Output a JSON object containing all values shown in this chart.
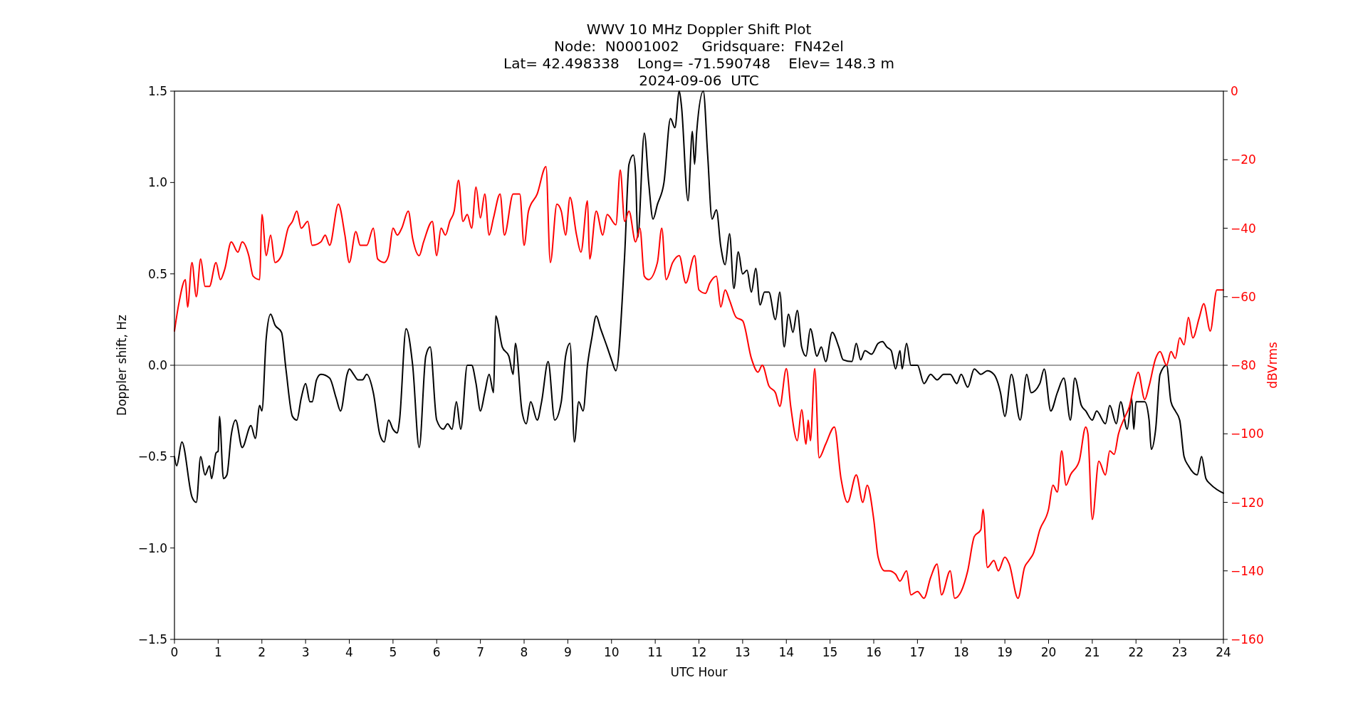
{
  "chart_data": {
    "type": "line",
    "title": "WWV 10 MHz Doppler Shift Plot",
    "subtitle": "Node:  N0001002     Gridsquare:  FN42el\nLat= 42.498338    Long= -71.590748    Elev= 148.3 m\n2024-09-06  UTC",
    "xlabel": "UTC Hour",
    "ylabel": "Doppler shift, Hz",
    "y2label": "dBVrms",
    "xlim": [
      0,
      24
    ],
    "xticks": [
      0,
      1,
      2,
      3,
      4,
      5,
      6,
      7,
      8,
      9,
      10,
      11,
      12,
      13,
      14,
      15,
      16,
      17,
      18,
      19,
      20,
      21,
      22,
      23,
      24
    ],
    "ylim": [
      -1.5,
      1.5
    ],
    "yticks": [
      {
        "value": -1.5,
        "label": "−1.5"
      },
      {
        "value": -1,
        "label": "−1.0"
      },
      {
        "value": -0.5,
        "label": "−0.5"
      },
      {
        "value": 0,
        "label": "0.0"
      },
      0.5,
      {
        "value": 1,
        "label": "1.0"
      },
      1.5
    ],
    "y2lim": [
      -160,
      0
    ],
    "y2ticks": [
      {
        "value": -160,
        "label": "−160"
      },
      {
        "value": -140,
        "label": "−140"
      },
      {
        "value": -120,
        "label": "−120"
      },
      {
        "value": -100,
        "label": "−100"
      },
      {
        "value": -80,
        "label": "−80"
      },
      {
        "value": -60,
        "label": "−60"
      },
      {
        "value": -40,
        "label": "−40"
      },
      {
        "value": -20,
        "label": "−20"
      },
      0
    ],
    "grid": false,
    "line_style": "solid",
    "marker": "none",
    "ref_lines": [
      {
        "axis": "y",
        "value": 0,
        "label": null,
        "color": "#808080"
      }
    ],
    "series": [
      {
        "color": "#000000",
        "axis": "y",
        "x": [
          0,
          0.05,
          0.17,
          0.4,
          0.5,
          0.6,
          0.7,
          0.8,
          0.85,
          0.95,
          1.0,
          1.03,
          1.12,
          1.2,
          1.3,
          1.4,
          1.55,
          1.75,
          1.85,
          1.95,
          2.0,
          2.1,
          2.2,
          2.3,
          2.45,
          2.55,
          2.7,
          2.8,
          2.9,
          3.0,
          3.1,
          3.15,
          3.25,
          3.35,
          3.55,
          3.7,
          3.8,
          3.95,
          4.0,
          4.1,
          4.2,
          4.3,
          4.4,
          4.55,
          4.7,
          4.8,
          4.9,
          5.0,
          5.1,
          5.15,
          5.3,
          5.45,
          5.6,
          5.75,
          5.85,
          6.0,
          6.15,
          6.25,
          6.35,
          6.45,
          6.55,
          6.7,
          6.8,
          6.9,
          7.0,
          7.1,
          7.2,
          7.3,
          7.35,
          7.5,
          7.65,
          7.75,
          7.8,
          7.95,
          8.05,
          8.15,
          8.3,
          8.4,
          8.55,
          8.7,
          8.85,
          8.95,
          9.05,
          9.15,
          9.25,
          9.35,
          9.45,
          9.55,
          9.65,
          9.75,
          9.9,
          10.0,
          10.1,
          10.3,
          10.4,
          10.5,
          10.55,
          10.6,
          10.75,
          10.85,
          10.95,
          11.05,
          11.2,
          11.35,
          11.45,
          11.55,
          11.6,
          11.75,
          11.85,
          11.9,
          11.95,
          12.1,
          12.2,
          12.3,
          12.4,
          12.5,
          12.6,
          12.7,
          12.8,
          12.9,
          13.0,
          13.1,
          13.2,
          13.3,
          13.4,
          13.5,
          13.6,
          13.75,
          13.85,
          13.95,
          14.05,
          14.15,
          14.25,
          14.35,
          14.45,
          14.55,
          14.7,
          14.8,
          14.9,
          15.05,
          15.2,
          15.3,
          15.5,
          15.6,
          15.7,
          15.8,
          15.95,
          16.1,
          16.2,
          16.3,
          16.4,
          16.5,
          16.6,
          16.65,
          16.75,
          16.85,
          17.0,
          17.15,
          17.3,
          17.45,
          17.6,
          17.75,
          17.9,
          18.0,
          18.15,
          18.3,
          18.45,
          18.6,
          18.75,
          18.9,
          19.0,
          19.15,
          19.35,
          19.5,
          19.6,
          19.8,
          19.9,
          20.05,
          20.2,
          20.35,
          20.5,
          20.6,
          20.75,
          20.85,
          21.0,
          21.1,
          21.3,
          21.4,
          21.55,
          21.65,
          21.8,
          21.9,
          21.95,
          22.0,
          22.2,
          22.3,
          22.35,
          22.45,
          22.55,
          22.7,
          22.8,
          22.9,
          23.0,
          23.1,
          23.2,
          23.4,
          23.5,
          23.6,
          23.7,
          23.85,
          24.0
        ],
        "values": [
          -0.5,
          -0.55,
          -0.42,
          -0.72,
          -0.75,
          -0.5,
          -0.6,
          -0.55,
          -0.62,
          -0.48,
          -0.47,
          -0.28,
          -0.62,
          -0.6,
          -0.38,
          -0.3,
          -0.45,
          -0.33,
          -0.4,
          -0.22,
          -0.25,
          0.15,
          0.28,
          0.22,
          0.18,
          -0.02,
          -0.28,
          -0.3,
          -0.18,
          -0.1,
          -0.2,
          -0.2,
          -0.08,
          -0.05,
          -0.07,
          -0.18,
          -0.25,
          -0.05,
          -0.02,
          -0.05,
          -0.08,
          -0.08,
          -0.05,
          -0.15,
          -0.38,
          -0.42,
          -0.3,
          -0.35,
          -0.37,
          -0.3,
          0.2,
          0.0,
          -0.45,
          0.05,
          0.1,
          -0.3,
          -0.35,
          -0.32,
          -0.35,
          -0.2,
          -0.35,
          0.0,
          0.0,
          -0.1,
          -0.25,
          -0.15,
          -0.05,
          -0.15,
          0.27,
          0.1,
          0.05,
          -0.05,
          0.12,
          -0.25,
          -0.32,
          -0.2,
          -0.3,
          -0.2,
          0.02,
          -0.3,
          -0.2,
          0.05,
          0.12,
          -0.42,
          -0.2,
          -0.25,
          0.0,
          0.15,
          0.27,
          0.2,
          0.1,
          0.03,
          -0.03,
          0.6,
          1.1,
          1.15,
          1.05,
          0.7,
          1.27,
          1.0,
          0.8,
          0.88,
          1.0,
          1.35,
          1.3,
          1.5,
          1.42,
          0.9,
          1.28,
          1.1,
          1.28,
          1.5,
          1.15,
          0.8,
          0.85,
          0.65,
          0.55,
          0.72,
          0.42,
          0.62,
          0.5,
          0.52,
          0.4,
          0.53,
          0.33,
          0.4,
          0.4,
          0.25,
          0.4,
          0.1,
          0.28,
          0.18,
          0.3,
          0.1,
          0.05,
          0.2,
          0.05,
          0.1,
          0.02,
          0.18,
          0.1,
          0.03,
          0.02,
          0.12,
          0.03,
          0.08,
          0.06,
          0.12,
          0.13,
          0.1,
          0.08,
          -0.02,
          0.08,
          -0.02,
          0.12,
          0.0,
          0.0,
          -0.1,
          -0.05,
          -0.08,
          -0.05,
          -0.05,
          -0.1,
          -0.05,
          -0.12,
          -0.02,
          -0.05,
          -0.03,
          -0.05,
          -0.15,
          -0.28,
          -0.05,
          -0.3,
          -0.05,
          -0.15,
          -0.1,
          -0.02,
          -0.25,
          -0.15,
          -0.07,
          -0.3,
          -0.07,
          -0.22,
          -0.25,
          -0.3,
          -0.25,
          -0.32,
          -0.22,
          -0.32,
          -0.2,
          -0.35,
          -0.18,
          -0.35,
          -0.2,
          -0.2,
          -0.3,
          -0.46,
          -0.35,
          -0.05,
          0.0,
          -0.2,
          -0.25,
          -0.3,
          -0.5,
          -0.55,
          -0.6,
          -0.5,
          -0.62,
          -0.65,
          -0.68,
          -0.7
        ]
      },
      {
        "color": "#ff0000",
        "axis": "y2",
        "x": [
          0,
          0.1,
          0.25,
          0.3,
          0.4,
          0.5,
          0.6,
          0.7,
          0.8,
          0.95,
          1.05,
          1.15,
          1.3,
          1.45,
          1.55,
          1.7,
          1.8,
          1.95,
          2.0,
          2.1,
          2.2,
          2.3,
          2.45,
          2.6,
          2.7,
          2.8,
          2.9,
          3.05,
          3.15,
          3.35,
          3.45,
          3.55,
          3.75,
          3.9,
          4.0,
          4.15,
          4.25,
          4.4,
          4.55,
          4.65,
          4.8,
          4.9,
          5.0,
          5.1,
          5.2,
          5.35,
          5.45,
          5.6,
          5.7,
          5.9,
          6.0,
          6.1,
          6.2,
          6.3,
          6.4,
          6.5,
          6.6,
          6.7,
          6.8,
          6.9,
          7.0,
          7.1,
          7.2,
          7.3,
          7.45,
          7.55,
          7.75,
          7.9,
          8.0,
          8.1,
          8.3,
          8.5,
          8.6,
          8.75,
          8.85,
          8.95,
          9.05,
          9.2,
          9.3,
          9.45,
          9.5,
          9.65,
          9.8,
          9.9,
          10.1,
          10.2,
          10.3,
          10.4,
          10.55,
          10.65,
          10.75,
          10.85,
          11.05,
          11.15,
          11.25,
          11.4,
          11.55,
          11.7,
          11.9,
          12.0,
          12.15,
          12.25,
          12.4,
          12.5,
          12.6,
          12.7,
          12.85,
          13.0,
          13.2,
          13.35,
          13.45,
          13.6,
          13.75,
          13.85,
          14.0,
          14.1,
          14.25,
          14.35,
          14.45,
          14.5,
          14.55,
          14.65,
          14.75,
          14.9,
          15.1,
          15.25,
          15.4,
          15.6,
          15.75,
          15.85,
          16.0,
          16.1,
          16.25,
          16.35,
          16.5,
          16.6,
          16.75,
          16.85,
          17.0,
          17.15,
          17.3,
          17.45,
          17.55,
          17.75,
          17.85,
          18.0,
          18.15,
          18.3,
          18.45,
          18.5,
          18.6,
          18.75,
          18.85,
          19.0,
          19.1,
          19.3,
          19.45,
          19.55,
          19.65,
          19.8,
          20.0,
          20.1,
          20.2,
          20.3,
          20.4,
          20.5,
          20.7,
          20.85,
          20.9,
          21.0,
          21.15,
          21.3,
          21.4,
          21.5,
          21.6,
          21.75,
          21.85,
          21.95,
          22.05,
          22.2,
          22.3,
          22.45,
          22.55,
          22.7,
          22.8,
          22.9,
          23.0,
          23.1,
          23.2,
          23.3,
          23.45,
          23.55,
          23.7,
          23.85,
          24.0
        ],
        "values": [
          -70,
          -62,
          -55,
          -63,
          -50,
          -60,
          -49,
          -57,
          -57,
          -50,
          -55,
          -52,
          -44,
          -47,
          -44,
          -48,
          -54,
          -55,
          -36,
          -48,
          -42,
          -50,
          -48,
          -40,
          -38,
          -35,
          -40,
          -38,
          -45,
          -44,
          -42,
          -45,
          -33,
          -42,
          -50,
          -41,
          -45,
          -45,
          -40,
          -49,
          -50,
          -48,
          -40,
          -42,
          -40,
          -35,
          -43,
          -48,
          -44,
          -38,
          -48,
          -40,
          -42,
          -38,
          -35,
          -26,
          -38,
          -36,
          -40,
          -28,
          -37,
          -30,
          -42,
          -37,
          -30,
          -42,
          -30,
          -30,
          -45,
          -35,
          -30,
          -22,
          -50,
          -33,
          -35,
          -42,
          -31,
          -42,
          -47,
          -32,
          -49,
          -35,
          -42,
          -36,
          -39,
          -23,
          -38,
          -35,
          -44,
          -40,
          -54,
          -55,
          -50,
          -40,
          -55,
          -50,
          -48,
          -56,
          -48,
          -58,
          -59,
          -56,
          -54,
          -63,
          -58,
          -61,
          -66,
          -67,
          -78,
          -82,
          -80,
          -86,
          -88,
          -92,
          -81,
          -92,
          -102,
          -93,
          -103,
          -96,
          -102,
          -81,
          -107,
          -103,
          -98,
          -113,
          -120,
          -112,
          -120,
          -115,
          -125,
          -136,
          -140,
          -140,
          -141,
          -143,
          -140,
          -147,
          -146,
          -148,
          -142,
          -138,
          -147,
          -140,
          -148,
          -146,
          -140,
          -130,
          -128,
          -122,
          -139,
          -137,
          -140,
          -136,
          -138,
          -148,
          -139,
          -137,
          -135,
          -128,
          -122,
          -115,
          -117,
          -105,
          -115,
          -112,
          -108,
          -98,
          -100,
          -125,
          -108,
          -112,
          -105,
          -106,
          -100,
          -95,
          -92,
          -86,
          -82,
          -90,
          -86,
          -78,
          -76,
          -80,
          -76,
          -78,
          -72,
          -74,
          -66,
          -72,
          -66,
          -62,
          -70,
          -58,
          -58
        ]
      }
    ]
  }
}
